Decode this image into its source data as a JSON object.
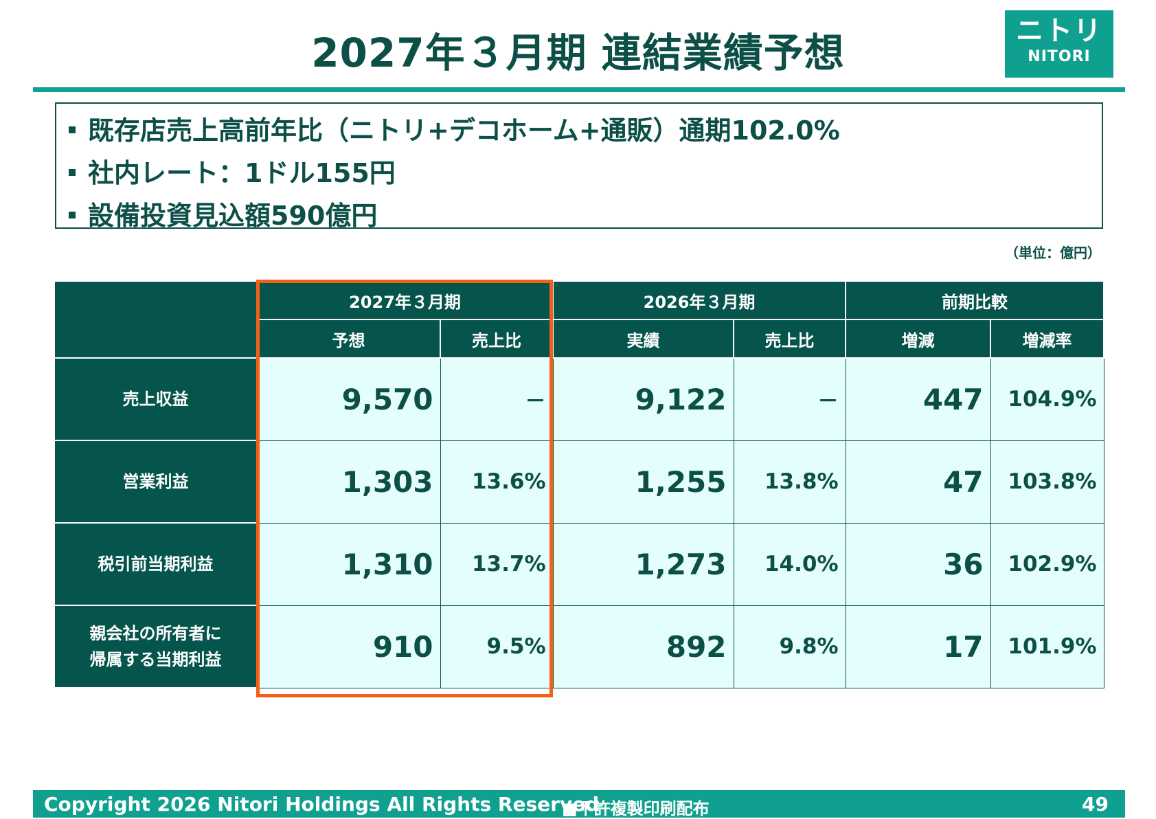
{
  "title": "2027年３月期 連結業績予想",
  "logo": {
    "kana": "ニトリ",
    "latin": "NITORI"
  },
  "bullets": [
    "既存店売上高前年比（ニトリ+デコホーム+通販）通期102.0%",
    "社内レート：1ドル155円",
    "設備投資見込額590億円"
  ],
  "unit": "（単位：億円）",
  "table": {
    "group_headers": [
      "2027年３月期",
      "2026年３月期",
      "前期比較"
    ],
    "sub_headers": [
      "予想",
      "売上比",
      "実績",
      "売上比",
      "増減",
      "増減率"
    ],
    "rows": [
      {
        "label": "売上収益",
        "forecast": "9,570",
        "forecast_ratio": "－",
        "actual": "9,122",
        "actual_ratio": "－",
        "change": "447",
        "change_rate": "104.9%"
      },
      {
        "label": "営業利益",
        "forecast": "1,303",
        "forecast_ratio": "13.6%",
        "actual": "1,255",
        "actual_ratio": "13.8%",
        "change": "47",
        "change_rate": "103.8%"
      },
      {
        "label": "税引前当期利益",
        "forecast": "1,310",
        "forecast_ratio": "13.7%",
        "actual": "1,273",
        "actual_ratio": "14.0%",
        "change": "36",
        "change_rate": "102.9%"
      },
      {
        "label_line1": "親会社の所有者に",
        "label_line2": "帰属する当期利益",
        "forecast": "910",
        "forecast_ratio": "9.5%",
        "actual": "892",
        "actual_ratio": "9.8%",
        "change": "17",
        "change_rate": "101.9%"
      }
    ]
  },
  "footer": {
    "copyright": "Copyright 2026 Nitori Holdings All Rights Reserved",
    "notice": "■不許複製印刷配布",
    "page": "49"
  },
  "colors": {
    "primary": "#0b4f47",
    "accent": "#10a090",
    "highlight": "#f26116",
    "cell_bg": "#e4fdfd"
  }
}
